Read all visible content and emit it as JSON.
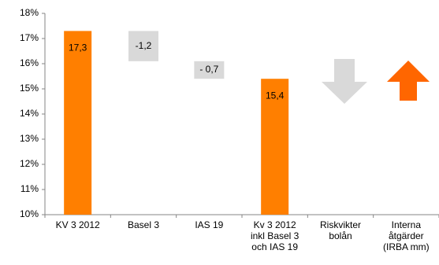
{
  "chart_data": {
    "type": "waterfall",
    "categories": [
      [
        "KV 3 2012"
      ],
      [
        "Basel 3"
      ],
      [
        "IAS 19"
      ],
      [
        "Kv 3 2012",
        "inkl Basel 3",
        "och IAS 19"
      ],
      [
        "Riskvikter",
        "bolån"
      ],
      [
        "Interna",
        "åtgärder",
        "(IRBA mm)"
      ]
    ],
    "values": [
      17.3,
      -1.2,
      -0.7,
      15.4,
      null,
      null
    ],
    "value_labels": [
      "17,3",
      "-1,2",
      "- 0,7",
      "15,4",
      null,
      null
    ],
    "colors": [
      "#FF7F00",
      "#D9D9D9",
      "#D9D9D9",
      "#FF7F00",
      null,
      null
    ],
    "ylim": [
      10,
      18
    ],
    "yticks": [
      {
        "value": 10,
        "label": "10%"
      },
      {
        "value": 11,
        "label": "11%"
      },
      {
        "value": 12,
        "label": "12%"
      },
      {
        "value": 13,
        "label": "13%"
      },
      {
        "value": 14,
        "label": "14%"
      },
      {
        "value": 15,
        "label": "15%"
      },
      {
        "value": 16,
        "label": "16%"
      },
      {
        "value": 17,
        "label": "17%"
      },
      {
        "value": 18,
        "label": "18%"
      }
    ],
    "grid": false
  }
}
